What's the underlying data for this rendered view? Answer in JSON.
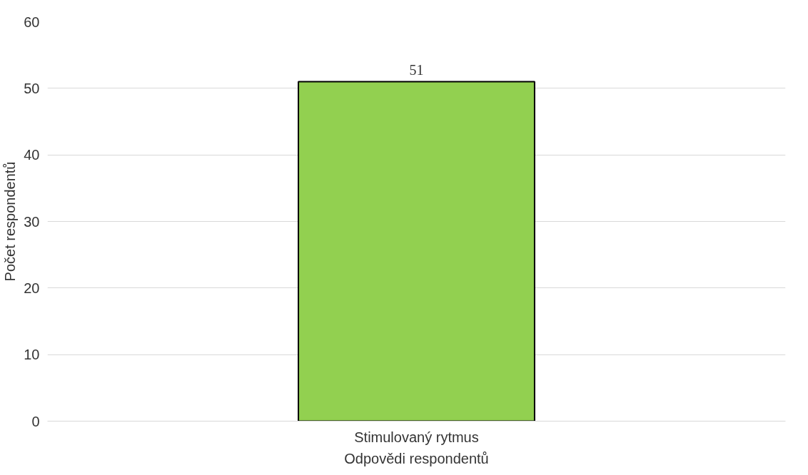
{
  "chart_data": {
    "type": "bar",
    "categories": [
      "Stimulovaný rytmus"
    ],
    "values": [
      51
    ],
    "color": "#92d050",
    "xlabel": "Odpovědi respondentů",
    "ylabel": "Počet respondentů",
    "ylim": [
      0,
      60
    ],
    "yticks": [
      0,
      10,
      20,
      30,
      40,
      50,
      60
    ],
    "grid": "y",
    "data_labels": true
  }
}
